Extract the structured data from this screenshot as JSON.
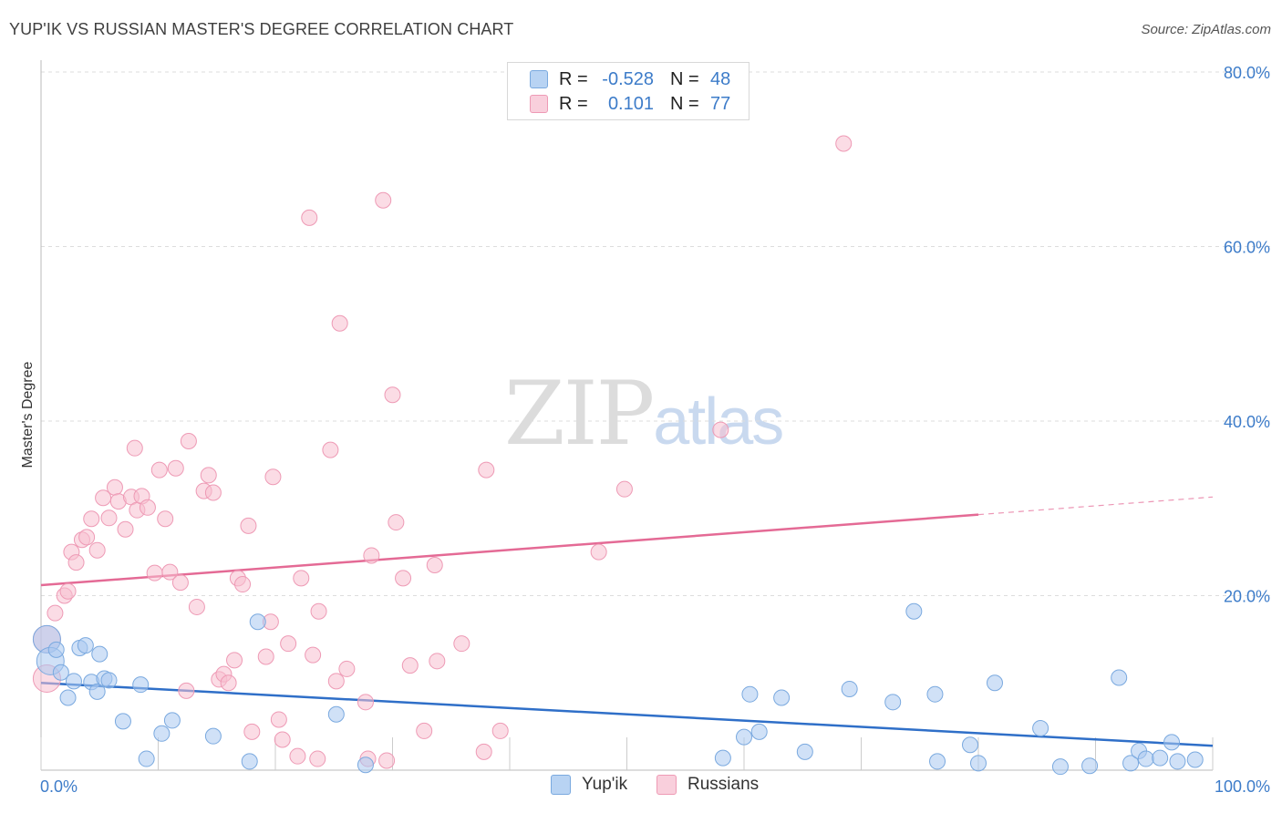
{
  "header": {
    "title": "YUP'IK VS RUSSIAN MASTER'S DEGREE CORRELATION CHART",
    "source": "Source: ZipAtlas.com"
  },
  "watermark": {
    "zip": "ZIP",
    "atlas": "atlas"
  },
  "legend": {
    "rows": [
      {
        "r_label": "R =",
        "r_value": "-0.528",
        "n_label": "N =",
        "n_value": "48"
      },
      {
        "r_label": "R =",
        "r_value": "0.101",
        "n_label": "N =",
        "n_value": "77"
      }
    ]
  },
  "bottom_legend": {
    "items": [
      "Yup'ik",
      "Russians"
    ]
  },
  "colors": {
    "yupik_fill": "#a9c9f0",
    "yupik_stroke": "#7aa9df",
    "yupik_line": "#2f6fc8",
    "russian_fill": "#f7bfd0",
    "russian_stroke": "#ee9ab5",
    "russian_line": "#e46a95",
    "tick": "#3d7cc9",
    "grid": "#dddddd"
  },
  "chart_data": {
    "type": "scatter",
    "title": "YUP'IK VS RUSSIAN MASTER'S DEGREE CORRELATION CHART",
    "xlabel": "",
    "ylabel": "Master's Degree",
    "xlim": [
      0,
      100
    ],
    "ylim": [
      0,
      80
    ],
    "x_tick_labels": [
      "0.0%",
      "100.0%"
    ],
    "y_ticks": [
      20,
      40,
      60,
      80
    ],
    "y_tick_labels": [
      "20.0%",
      "40.0%",
      "60.0%",
      "80.0%"
    ],
    "grid": true,
    "legend_position": "top-center",
    "series": [
      {
        "name": "Yup'ik",
        "r": -0.528,
        "n": 48,
        "trend": {
          "x0": 0,
          "y0": 10.0,
          "x1": 100,
          "y1": 2.8,
          "solid_until": 100
        },
        "points": [
          [
            0.5,
            15.0
          ],
          [
            0.8,
            12.5
          ],
          [
            1.3,
            13.8
          ],
          [
            1.7,
            11.2
          ],
          [
            2.3,
            8.3
          ],
          [
            2.8,
            10.2
          ],
          [
            3.3,
            14.0
          ],
          [
            3.8,
            14.3
          ],
          [
            4.3,
            10.1
          ],
          [
            4.8,
            9.0
          ],
          [
            5.0,
            13.3
          ],
          [
            5.4,
            10.5
          ],
          [
            5.8,
            10.3
          ],
          [
            7.0,
            5.6
          ],
          [
            8.5,
            9.8
          ],
          [
            9.0,
            1.3
          ],
          [
            10.3,
            4.2
          ],
          [
            11.2,
            5.7
          ],
          [
            14.7,
            3.9
          ],
          [
            17.8,
            1.0
          ],
          [
            18.5,
            17.0
          ],
          [
            25.2,
            6.4
          ],
          [
            27.7,
            0.6
          ],
          [
            58.2,
            1.4
          ],
          [
            60.0,
            3.8
          ],
          [
            60.5,
            8.7
          ],
          [
            61.3,
            4.4
          ],
          [
            63.2,
            8.3
          ],
          [
            65.2,
            2.1
          ],
          [
            69.0,
            9.3
          ],
          [
            72.7,
            7.8
          ],
          [
            74.5,
            18.2
          ],
          [
            76.3,
            8.7
          ],
          [
            76.5,
            1.0
          ],
          [
            79.3,
            2.9
          ],
          [
            80.0,
            0.8
          ],
          [
            81.4,
            10.0
          ],
          [
            85.3,
            4.8
          ],
          [
            87.0,
            0.4
          ],
          [
            89.5,
            0.5
          ],
          [
            92.0,
            10.6
          ],
          [
            93.0,
            0.8
          ],
          [
            93.7,
            2.2
          ],
          [
            94.3,
            1.3
          ],
          [
            95.5,
            1.4
          ],
          [
            96.5,
            3.2
          ],
          [
            97.0,
            1.0
          ],
          [
            98.5,
            1.2
          ]
        ]
      },
      {
        "name": "Russians",
        "r": 0.101,
        "n": 77,
        "trend": {
          "x0": 0,
          "y0": 21.2,
          "x1": 100,
          "y1": 31.3,
          "solid_until": 80
        },
        "points": [
          [
            0.5,
            15.0
          ],
          [
            0.5,
            10.5
          ],
          [
            1.2,
            18.0
          ],
          [
            2.0,
            20.0
          ],
          [
            2.3,
            20.5
          ],
          [
            2.6,
            25.0
          ],
          [
            3.0,
            23.8
          ],
          [
            3.5,
            26.4
          ],
          [
            3.9,
            26.7
          ],
          [
            4.3,
            28.8
          ],
          [
            4.8,
            25.2
          ],
          [
            5.3,
            31.2
          ],
          [
            5.8,
            28.9
          ],
          [
            6.3,
            32.4
          ],
          [
            6.6,
            30.8
          ],
          [
            7.2,
            27.6
          ],
          [
            7.7,
            31.3
          ],
          [
            8.0,
            36.9
          ],
          [
            8.2,
            29.8
          ],
          [
            8.6,
            31.4
          ],
          [
            9.1,
            30.1
          ],
          [
            9.7,
            22.6
          ],
          [
            10.1,
            34.4
          ],
          [
            10.6,
            28.8
          ],
          [
            11.0,
            22.7
          ],
          [
            11.5,
            34.6
          ],
          [
            11.9,
            21.5
          ],
          [
            12.4,
            9.1
          ],
          [
            12.6,
            37.7
          ],
          [
            13.3,
            18.7
          ],
          [
            13.9,
            32.0
          ],
          [
            14.3,
            33.8
          ],
          [
            14.7,
            31.8
          ],
          [
            15.2,
            10.4
          ],
          [
            15.6,
            11.0
          ],
          [
            16.0,
            10.0
          ],
          [
            16.5,
            12.6
          ],
          [
            16.8,
            22.0
          ],
          [
            17.2,
            21.3
          ],
          [
            17.7,
            28.0
          ],
          [
            18.0,
            4.4
          ],
          [
            19.2,
            13.0
          ],
          [
            19.6,
            17.0
          ],
          [
            19.8,
            33.6
          ],
          [
            20.3,
            5.8
          ],
          [
            20.6,
            3.5
          ],
          [
            21.1,
            14.5
          ],
          [
            21.9,
            1.6
          ],
          [
            22.2,
            22.0
          ],
          [
            22.9,
            63.3
          ],
          [
            23.2,
            13.2
          ],
          [
            23.7,
            18.2
          ],
          [
            23.6,
            1.3
          ],
          [
            24.7,
            36.7
          ],
          [
            25.2,
            10.2
          ],
          [
            25.5,
            51.2
          ],
          [
            26.1,
            11.6
          ],
          [
            27.7,
            7.8
          ],
          [
            27.9,
            1.3
          ],
          [
            28.2,
            24.6
          ],
          [
            29.2,
            65.3
          ],
          [
            29.5,
            1.1
          ],
          [
            30.0,
            43.0
          ],
          [
            30.3,
            28.4
          ],
          [
            30.9,
            22.0
          ],
          [
            31.5,
            12.0
          ],
          [
            32.7,
            4.5
          ],
          [
            33.6,
            23.5
          ],
          [
            33.8,
            12.5
          ],
          [
            35.9,
            14.5
          ],
          [
            37.8,
            2.1
          ],
          [
            38.0,
            34.4
          ],
          [
            39.2,
            4.5
          ],
          [
            47.6,
            25.0
          ],
          [
            49.8,
            32.2
          ],
          [
            58.0,
            39.0
          ],
          [
            68.5,
            71.8
          ]
        ]
      }
    ]
  }
}
